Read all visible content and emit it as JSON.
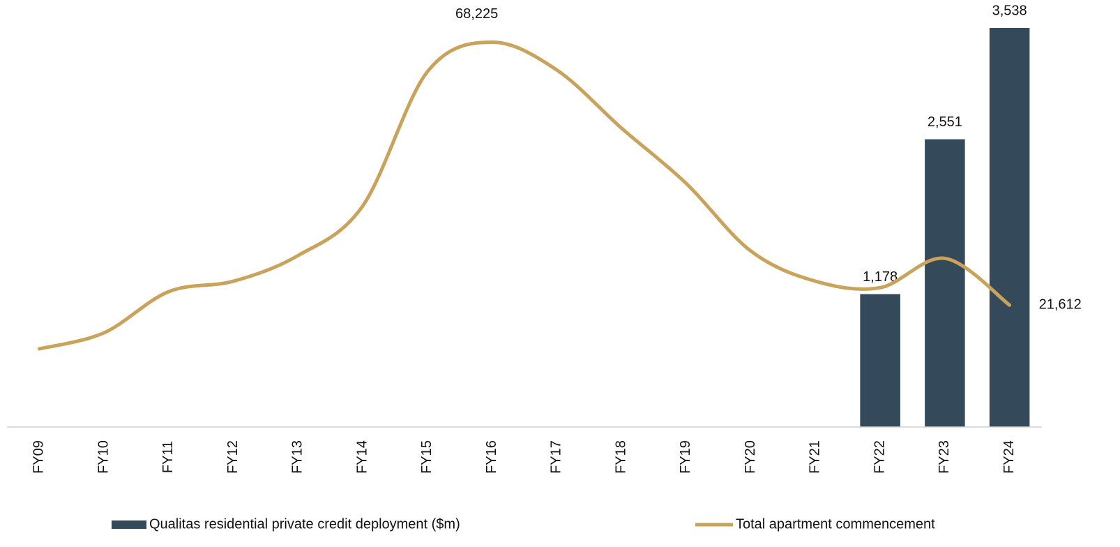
{
  "chart_data": {
    "type": "bar_line",
    "categories": [
      "FY09",
      "FY10",
      "FY11",
      "FY12",
      "FY13",
      "FY14",
      "FY15",
      "FY16",
      "FY17",
      "FY18",
      "FY19",
      "FY20",
      "FY21",
      "FY22",
      "FY23",
      "FY24"
    ],
    "series": [
      {
        "name": "Qualitas residential private credit deployment ($m)",
        "type": "bar",
        "color": "#344a5b",
        "values": [
          null,
          null,
          null,
          null,
          null,
          null,
          null,
          null,
          null,
          null,
          null,
          null,
          null,
          1178,
          2551,
          3538
        ],
        "value_labels": [
          null,
          null,
          null,
          null,
          null,
          null,
          null,
          null,
          null,
          null,
          null,
          null,
          null,
          "1,178",
          "2,551",
          "3,538"
        ]
      },
      {
        "name": "Total apartment commencement",
        "type": "line",
        "axis": "y2",
        "color": "#c9a35c",
        "values": [
          13850,
          16700,
          24000,
          25850,
          30400,
          39200,
          63000,
          68225,
          63300,
          53000,
          43200,
          31200,
          25850,
          24700,
          29900,
          21612
        ],
        "value_labels": [
          null,
          null,
          null,
          null,
          null,
          null,
          null,
          "68,225",
          null,
          null,
          null,
          null,
          null,
          null,
          null,
          "21,612"
        ]
      }
    ],
    "ylim": [
      0,
      3600
    ],
    "y2lim": [
      0,
      72000
    ],
    "legend": "bottom"
  }
}
